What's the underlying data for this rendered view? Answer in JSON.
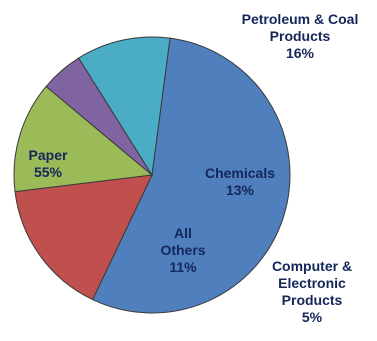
{
  "chart_data": {
    "type": "pie",
    "slices": [
      {
        "label": [
          "Paper"
        ],
        "value": 55,
        "value_label": "55%",
        "color": "#4f80bd"
      },
      {
        "label": [
          "Petroleum & Coal",
          "Products"
        ],
        "value": 16,
        "value_label": "16%",
        "color": "#c0504d"
      },
      {
        "label": [
          "Chemicals"
        ],
        "value": 13,
        "value_label": "13%",
        "color": "#9bbb59"
      },
      {
        "label": [
          "Computer &",
          "Electronic",
          "Products"
        ],
        "value": 5,
        "value_label": "5%",
        "color": "#8064a2"
      },
      {
        "label": [
          "All",
          "Others"
        ],
        "value": 11,
        "value_label": "11%",
        "color": "#4bacc6"
      }
    ]
  }
}
